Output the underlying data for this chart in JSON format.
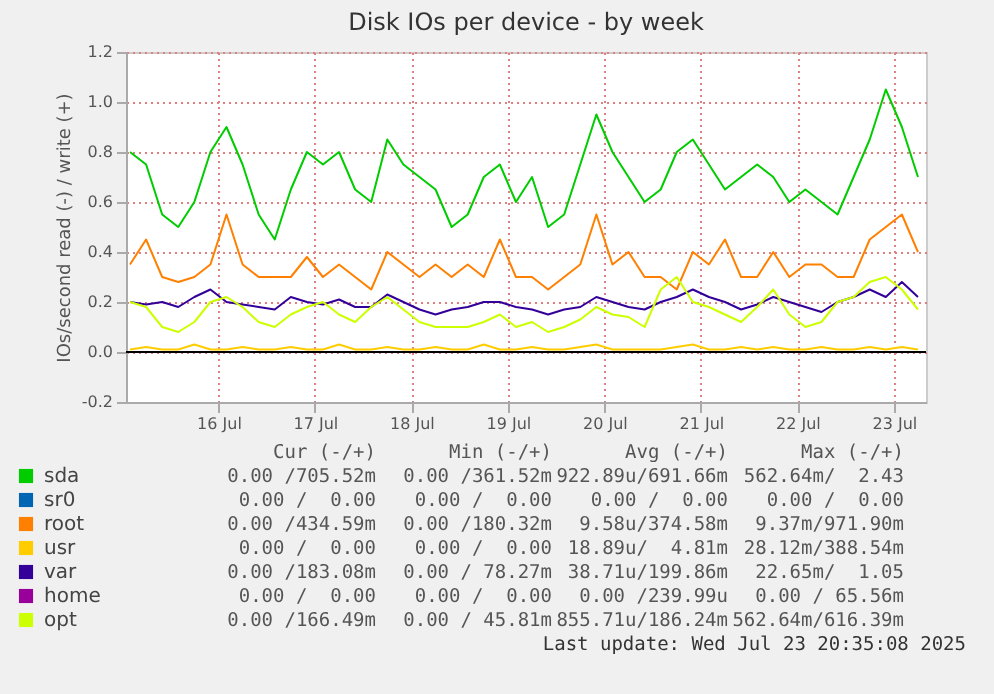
{
  "chart_data": {
    "type": "line",
    "title": "Disk IOs per device - by week",
    "ylabel": "IOs/second read (-) / write (+)",
    "x": [
      "2025-07-15T14:00",
      "2025-07-15T18:00",
      "2025-07-15T22:00",
      "2025-07-16T02:00",
      "2025-07-16T06:00",
      "2025-07-16T10:00",
      "2025-07-16T14:00",
      "2025-07-16T18:00",
      "2025-07-16T22:00",
      "2025-07-17T02:00",
      "2025-07-17T06:00",
      "2025-07-17T10:00",
      "2025-07-17T14:00",
      "2025-07-17T18:00",
      "2025-07-17T22:00",
      "2025-07-18T02:00",
      "2025-07-18T06:00",
      "2025-07-18T10:00",
      "2025-07-18T14:00",
      "2025-07-18T18:00",
      "2025-07-18T22:00",
      "2025-07-19T02:00",
      "2025-07-19T06:00",
      "2025-07-19T10:00",
      "2025-07-19T14:00",
      "2025-07-19T18:00",
      "2025-07-19T22:00",
      "2025-07-20T02:00",
      "2025-07-20T06:00",
      "2025-07-20T10:00",
      "2025-07-20T14:00",
      "2025-07-20T18:00",
      "2025-07-20T22:00",
      "2025-07-21T02:00",
      "2025-07-21T06:00",
      "2025-07-21T10:00",
      "2025-07-21T14:00",
      "2025-07-21T18:00",
      "2025-07-21T22:00",
      "2025-07-22T02:00",
      "2025-07-22T06:00",
      "2025-07-22T10:00",
      "2025-07-22T14:00",
      "2025-07-22T18:00",
      "2025-07-22T22:00",
      "2025-07-23T02:00",
      "2025-07-23T06:00",
      "2025-07-23T10:00",
      "2025-07-23T14:00",
      "2025-07-23T18:00"
    ],
    "series": [
      {
        "name": "sda",
        "color": "#00cc00",
        "values": [
          0.8,
          0.75,
          0.55,
          0.5,
          0.6,
          0.8,
          0.9,
          0.75,
          0.55,
          0.45,
          0.65,
          0.8,
          0.75,
          0.8,
          0.65,
          0.6,
          0.85,
          0.75,
          0.7,
          0.65,
          0.5,
          0.55,
          0.7,
          0.75,
          0.6,
          0.7,
          0.5,
          0.55,
          0.75,
          0.95,
          0.8,
          0.7,
          0.6,
          0.65,
          0.8,
          0.85,
          0.75,
          0.65,
          0.7,
          0.75,
          0.7,
          0.6,
          0.65,
          0.6,
          0.55,
          0.7,
          0.85,
          1.05,
          0.9,
          0.7
        ]
      },
      {
        "name": "sr0",
        "color": "#0066b3",
        "values": [
          null,
          null,
          null,
          null,
          null,
          null,
          null,
          null,
          null,
          null,
          null,
          null,
          null,
          null,
          null,
          null,
          null,
          null,
          null,
          null,
          null,
          null,
          null,
          null,
          null,
          null,
          null,
          null,
          null,
          null,
          null,
          null,
          null,
          null,
          null,
          null,
          null,
          null,
          null,
          null,
          null,
          null,
          null,
          null,
          null,
          null,
          null,
          null,
          null,
          null
        ]
      },
      {
        "name": "root",
        "color": "#ff8000",
        "values": [
          0.35,
          0.45,
          0.3,
          0.28,
          0.3,
          0.35,
          0.55,
          0.35,
          0.3,
          0.3,
          0.3,
          0.38,
          0.3,
          0.35,
          0.3,
          0.25,
          0.4,
          0.35,
          0.3,
          0.35,
          0.3,
          0.35,
          0.3,
          0.45,
          0.3,
          0.3,
          0.25,
          0.3,
          0.35,
          0.55,
          0.35,
          0.4,
          0.3,
          0.3,
          0.25,
          0.4,
          0.35,
          0.45,
          0.3,
          0.3,
          0.4,
          0.3,
          0.35,
          0.35,
          0.3,
          0.3,
          0.45,
          0.5,
          0.55,
          0.4
        ]
      },
      {
        "name": "usr",
        "color": "#ffcc00",
        "values": [
          0.01,
          0.02,
          0.01,
          0.01,
          0.03,
          0.01,
          0.01,
          0.02,
          0.01,
          0.01,
          0.02,
          0.01,
          0.01,
          0.03,
          0.01,
          0.01,
          0.02,
          0.01,
          0.01,
          0.02,
          0.01,
          0.01,
          0.03,
          0.01,
          0.01,
          0.02,
          0.01,
          0.01,
          0.02,
          0.03,
          0.01,
          0.01,
          0.01,
          0.01,
          0.02,
          0.03,
          0.01,
          0.01,
          0.02,
          0.01,
          0.02,
          0.01,
          0.01,
          0.02,
          0.01,
          0.01,
          0.02,
          0.01,
          0.02,
          0.01
        ]
      },
      {
        "name": "var",
        "color": "#330099",
        "values": [
          0.2,
          0.19,
          0.2,
          0.18,
          0.22,
          0.25,
          0.2,
          0.19,
          0.18,
          0.17,
          0.22,
          0.2,
          0.19,
          0.21,
          0.18,
          0.18,
          0.23,
          0.2,
          0.17,
          0.15,
          0.17,
          0.18,
          0.2,
          0.2,
          0.18,
          0.17,
          0.15,
          0.17,
          0.18,
          0.22,
          0.2,
          0.18,
          0.17,
          0.2,
          0.22,
          0.25,
          0.22,
          0.2,
          0.17,
          0.19,
          0.22,
          0.2,
          0.18,
          0.16,
          0.2,
          0.22,
          0.25,
          0.22,
          0.28,
          0.22
        ]
      },
      {
        "name": "home",
        "color": "#990099",
        "values": [
          null,
          null,
          null,
          null,
          null,
          null,
          null,
          null,
          null,
          null,
          null,
          null,
          null,
          null,
          null,
          null,
          null,
          null,
          null,
          null,
          null,
          null,
          null,
          null,
          null,
          null,
          null,
          null,
          null,
          null,
          null,
          null,
          null,
          null,
          null,
          null,
          null,
          null,
          null,
          null,
          null,
          null,
          null,
          null,
          null,
          null,
          null,
          null,
          null,
          null
        ]
      },
      {
        "name": "opt",
        "color": "#ccff00",
        "values": [
          0.2,
          0.18,
          0.1,
          0.08,
          0.12,
          0.2,
          0.22,
          0.18,
          0.12,
          0.1,
          0.15,
          0.18,
          0.2,
          0.15,
          0.12,
          0.18,
          0.22,
          0.17,
          0.12,
          0.1,
          0.1,
          0.1,
          0.12,
          0.15,
          0.1,
          0.12,
          0.08,
          0.1,
          0.13,
          0.18,
          0.15,
          0.14,
          0.1,
          0.25,
          0.3,
          0.2,
          0.18,
          0.15,
          0.12,
          0.18,
          0.25,
          0.15,
          0.1,
          0.12,
          0.2,
          0.22,
          0.28,
          0.3,
          0.25,
          0.17
        ]
      }
    ],
    "xlim": [
      "2025-07-15T13:00",
      "2025-07-23T20:00"
    ],
    "xticks": [
      {
        "value": "2025-07-16T12:00",
        "label": "16 Jul"
      },
      {
        "value": "2025-07-17T12:00",
        "label": "17 Jul"
      },
      {
        "value": "2025-07-18T12:00",
        "label": "18 Jul"
      },
      {
        "value": "2025-07-19T12:00",
        "label": "19 Jul"
      },
      {
        "value": "2025-07-20T12:00",
        "label": "20 Jul"
      },
      {
        "value": "2025-07-21T12:00",
        "label": "21 Jul"
      },
      {
        "value": "2025-07-22T12:00",
        "label": "22 Jul"
      },
      {
        "value": "2025-07-23T12:00",
        "label": "23 Jul"
      }
    ],
    "ylim": [
      -0.2,
      1.2
    ],
    "yticks": [
      -0.2,
      {
        "value": 0,
        "label": "0.0"
      },
      0.2,
      0.4,
      0.6,
      0.8,
      {
        "value": 1,
        "label": "1.0"
      },
      1.2
    ],
    "ref_lines": [
      {
        "axis": "y",
        "value": 0,
        "color": "#000000"
      }
    ],
    "grid": true,
    "legend": "bottom left",
    "annotations": [
      "Cur (-/+)",
      "Min (-/+)",
      "Avg (-/+)",
      "Max (-/+)",
      "0.00 /705.52m",
      "0.00 /361.52m",
      "922.89u/691.66m",
      "562.64m/  2.43",
      "0.00 /  0.00",
      "0.00 /  0.00",
      "0.00 /  0.00",
      "0.00 /  0.00",
      "0.00 /434.59m",
      "0.00 /180.32m",
      "9.58u/374.58m",
      "9.37m/971.90m",
      "0.00 /  0.00",
      "0.00 /  0.00",
      "18.89u/  4.81m",
      "28.12m/388.54m",
      "0.00 /183.08m",
      "0.00 / 78.27m",
      "38.71u/199.86m",
      "22.65m/  1.05",
      "0.00 /  0.00",
      "0.00 /  0.00",
      "0.00 /239.99u",
      "0.00 / 65.56m",
      "0.00 /166.49m",
      "0.00 / 45.81m",
      "855.71u/186.24m",
      "562.64m/616.39m",
      "Last update: Wed Jul 23 20:35:08 2025"
    ]
  }
}
